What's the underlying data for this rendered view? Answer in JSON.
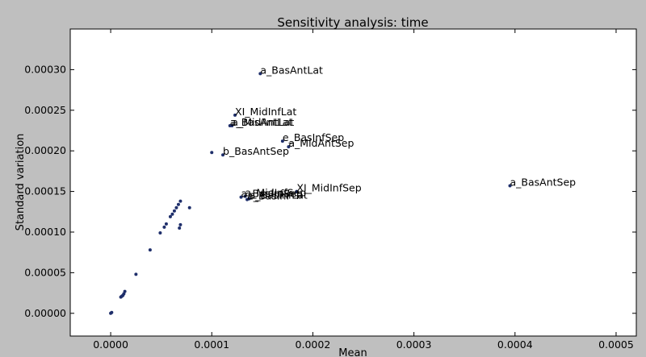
{
  "chart_data": {
    "type": "scatter",
    "title": "Sensitivity analysis: time",
    "xlabel": "Mean",
    "ylabel": "Standard variation",
    "xlim": [
      -4e-05,
      0.00052
    ],
    "ylim": [
      -2.8e-05,
      0.00035
    ],
    "xticks": [
      "0.0000",
      "0.0001",
      "0.0002",
      "0.0003",
      "0.0004",
      "0.0005"
    ],
    "xtick_values": [
      0,
      0.0001,
      0.0002,
      0.0003,
      0.0004,
      0.0005
    ],
    "yticks": [
      "0.00000",
      "0.00005",
      "0.00010",
      "0.00015",
      "0.00020",
      "0.00025",
      "0.00030"
    ],
    "ytick_values": [
      0,
      5e-05,
      0.0001,
      0.00015,
      0.0002,
      0.00025,
      0.0003
    ],
    "marker_color": "#1f2f6b",
    "background": "#bfbfbf",
    "plot_background": "#ffffff",
    "grid": false,
    "points": [
      {
        "x": 0.000148,
        "y": 0.000295,
        "label": "a_BasAntLat"
      },
      {
        "x": 0.000123,
        "y": 0.000244,
        "label": "XI_MidInfLat"
      },
      {
        "x": 0.000118,
        "y": 0.000231,
        "label": "a_BasAntLat"
      },
      {
        "x": 0.00012,
        "y": 0.000231,
        "label": "a_MidAntLat"
      },
      {
        "x": 0.00017,
        "y": 0.000212,
        "label": "e_BasInfSep"
      },
      {
        "x": 0.000176,
        "y": 0.000205,
        "label": "a_MidAntSep"
      },
      {
        "x": 0.0001,
        "y": 0.000198,
        "label": ""
      },
      {
        "x": 0.000111,
        "y": 0.000195,
        "label": "b_BasAntSep"
      },
      {
        "x": 0.000395,
        "y": 0.000157,
        "label": "a_BasAntSep"
      },
      {
        "x": 0.000184,
        "y": 0.00015,
        "label": "XI_MidInfSep"
      },
      {
        "x": 0.000129,
        "y": 0.000143,
        "label": "a_BasInfSep"
      },
      {
        "x": 0.000133,
        "y": 0.000144,
        "label": "a_MidInfSep"
      },
      {
        "x": 0.000137,
        "y": 0.000141,
        "label": "a_BasInfLat"
      },
      {
        "x": 0.000135,
        "y": 0.00014,
        "label": "a_BasInf"
      },
      {
        "x": 6.9e-05,
        "y": 0.000138,
        "label": ""
      },
      {
        "x": 6.7e-05,
        "y": 0.000134,
        "label": ""
      },
      {
        "x": 6.5e-05,
        "y": 0.00013,
        "label": ""
      },
      {
        "x": 7.8e-05,
        "y": 0.00013,
        "label": ""
      },
      {
        "x": 6.3e-05,
        "y": 0.000126,
        "label": ""
      },
      {
        "x": 6.1e-05,
        "y": 0.000122,
        "label": ""
      },
      {
        "x": 5.9e-05,
        "y": 0.000119,
        "label": ""
      },
      {
        "x": 5.5e-05,
        "y": 0.00011,
        "label": ""
      },
      {
        "x": 6.9e-05,
        "y": 0.000109,
        "label": ""
      },
      {
        "x": 5.3e-05,
        "y": 0.000106,
        "label": ""
      },
      {
        "x": 6.8e-05,
        "y": 0.000105,
        "label": ""
      },
      {
        "x": 4.9e-05,
        "y": 9.9e-05,
        "label": ""
      },
      {
        "x": 3.9e-05,
        "y": 7.8e-05,
        "label": ""
      },
      {
        "x": 2.5e-05,
        "y": 4.8e-05,
        "label": ""
      },
      {
        "x": 1.4e-05,
        "y": 2.7e-05,
        "label": ""
      },
      {
        "x": 1.3e-05,
        "y": 2.4e-05,
        "label": ""
      },
      {
        "x": 1.2e-05,
        "y": 2.2e-05,
        "label": ""
      },
      {
        "x": 1.1e-05,
        "y": 2.1e-05,
        "label": ""
      },
      {
        "x": 1e-05,
        "y": 2e-05,
        "label": ""
      },
      {
        "x": 1e-06,
        "y": 1e-06,
        "label": ""
      },
      {
        "x": 0.0,
        "y": 0.0,
        "label": ""
      }
    ]
  }
}
